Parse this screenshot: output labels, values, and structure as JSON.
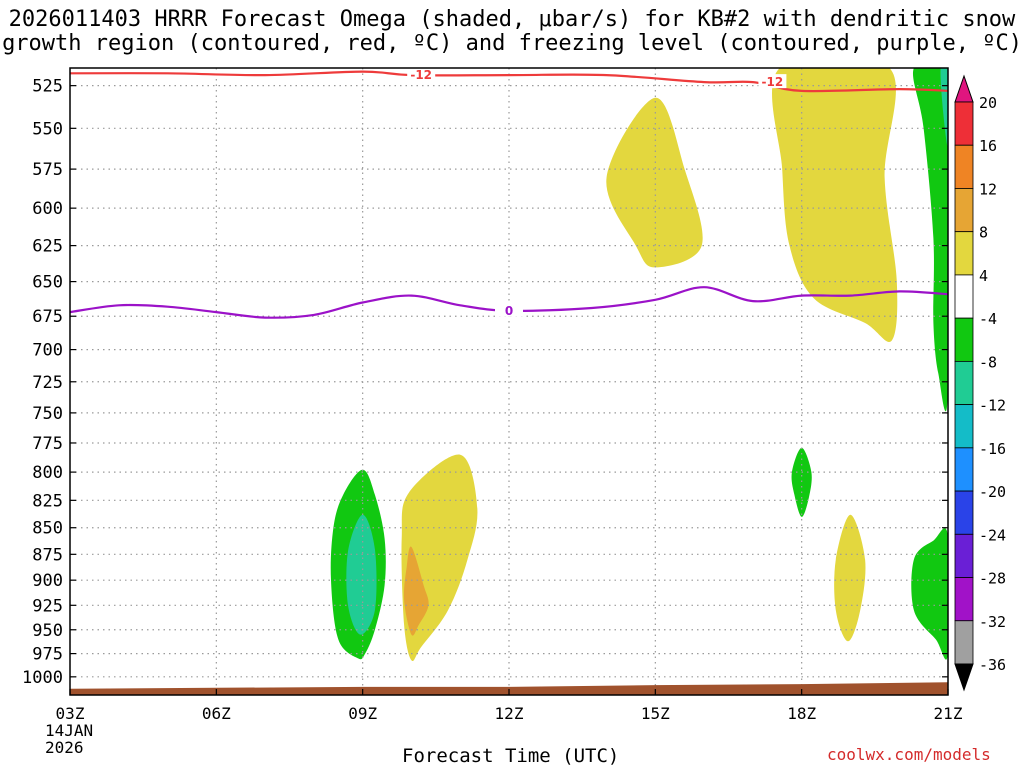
{
  "title": {
    "line1": "2026011403 HRRR Forecast Omega (shaded, μbar/s) for KB#2 with dendritic snow",
    "line2": "growth region (contoured, red, ºC) and freezing level (contoured, purple, ºC)"
  },
  "footer": {
    "xlabel": "Forecast Time (UTC)",
    "date_day": "14JAN",
    "date_year": "2026",
    "credit": "coolwx.com/models"
  },
  "colors": {
    "dgz_line": "#ee3b3b",
    "freezing_line": "#9b12c8",
    "terrain": "#a0522d",
    "grid": "#9a9a9a"
  },
  "chart_data": {
    "type": "contour-time-height",
    "x_ticks": [
      "03Z",
      "06Z",
      "09Z",
      "12Z",
      "15Z",
      "18Z",
      "21Z"
    ],
    "x_hours": [
      3,
      6,
      9,
      12,
      15,
      18,
      21
    ],
    "x_range": [
      3,
      21
    ],
    "y_ticks": [
      525,
      550,
      575,
      600,
      625,
      650,
      675,
      700,
      725,
      750,
      775,
      800,
      825,
      850,
      875,
      900,
      925,
      950,
      975,
      1000
    ],
    "y_range_hpa": [
      515,
      1020
    ],
    "y_scale": "log",
    "colorbar": {
      "ticks": [
        "20",
        "16",
        "12",
        "8",
        "4",
        "-4",
        "-8",
        "-12",
        "-16",
        "-20",
        "-24",
        "-28",
        "-32",
        "-36"
      ],
      "bins": [
        {
          "range": ">20",
          "color": "#e0157f"
        },
        {
          "range": "16 to 20",
          "color": "#ee2f37"
        },
        {
          "range": "12 to 16",
          "color": "#ef8424"
        },
        {
          "range": "8 to 12",
          "color": "#e6a534"
        },
        {
          "range": "4 to 8",
          "color": "#e3d73e"
        },
        {
          "range": "-4 to 4",
          "color": "#ffffff"
        },
        {
          "range": "-8 to -4",
          "color": "#11c811"
        },
        {
          "range": "-12 to -8",
          "color": "#20cc94"
        },
        {
          "range": "-16 to -12",
          "color": "#14bcc8"
        },
        {
          "range": "-20 to -16",
          "color": "#1e90ff"
        },
        {
          "range": "-24 to -20",
          "color": "#2a43e8"
        },
        {
          "range": "-28 to -24",
          "color": "#6a1fd6"
        },
        {
          "range": "-32 to -28",
          "color": "#a112c8"
        },
        {
          "range": "-36 to -32",
          "color": "#a0a0a0"
        },
        {
          "range": "<-36",
          "color": "#000000"
        }
      ]
    },
    "contours": [
      {
        "name": "dendritic growth region",
        "label": "-12",
        "units": "ºC",
        "color": "#ee3b3b",
        "points": [
          [
            3,
            518
          ],
          [
            5,
            518
          ],
          [
            7,
            519
          ],
          [
            9,
            517
          ],
          [
            10,
            519
          ],
          [
            12,
            519
          ],
          [
            14,
            519
          ],
          [
            16,
            523
          ],
          [
            17,
            523
          ],
          [
            18,
            528
          ],
          [
            20,
            527
          ],
          [
            21,
            528
          ]
        ],
        "label_positions": [
          [
            10.2,
            519
          ],
          [
            17.4,
            523
          ]
        ]
      },
      {
        "name": "freezing level",
        "label": "0",
        "units": "ºC",
        "color": "#9b12c8",
        "points": [
          [
            3,
            672
          ],
          [
            4,
            667
          ],
          [
            5,
            668
          ],
          [
            6,
            672
          ],
          [
            7,
            676
          ],
          [
            8,
            674
          ],
          [
            9,
            665
          ],
          [
            10,
            660
          ],
          [
            11,
            667
          ],
          [
            12,
            671
          ],
          [
            13.7,
            669
          ],
          [
            15,
            663
          ],
          [
            16,
            654
          ],
          [
            17,
            664
          ],
          [
            18,
            660
          ],
          [
            19,
            660
          ],
          [
            20,
            657
          ],
          [
            21,
            659
          ]
        ],
        "label_positions": [
          [
            12,
            671
          ]
        ]
      }
    ],
    "shaded_regions": [
      {
        "value_bin": "-8 to -4",
        "points": [
          [
            9,
            798
          ],
          [
            9.25,
            820
          ],
          [
            9.45,
            860
          ],
          [
            9.45,
            905
          ],
          [
            9.25,
            950
          ],
          [
            9.05,
            975
          ],
          [
            8.9,
            980
          ],
          [
            8.5,
            960
          ],
          [
            8.35,
            900
          ],
          [
            8.4,
            850
          ],
          [
            8.6,
            820
          ]
        ]
      },
      {
        "value_bin": "-12 to -8",
        "points": [
          [
            9.0,
            838
          ],
          [
            9.25,
            870
          ],
          [
            9.25,
            930
          ],
          [
            8.95,
            955
          ],
          [
            8.7,
            925
          ],
          [
            8.7,
            872
          ]
        ]
      },
      {
        "value_bin": "4 to 8",
        "points": [
          [
            11.0,
            785
          ],
          [
            11.35,
            832
          ],
          [
            11.15,
            880
          ],
          [
            10.75,
            930
          ],
          [
            10.2,
            968
          ],
          [
            10.0,
            982
          ],
          [
            9.85,
            945
          ],
          [
            9.8,
            860
          ],
          [
            9.95,
            818
          ]
        ]
      },
      {
        "value_bin": "8 to 12",
        "points": [
          [
            10.0,
            868
          ],
          [
            10.25,
            905
          ],
          [
            10.35,
            925
          ],
          [
            10.15,
            945
          ],
          [
            10.0,
            955
          ],
          [
            9.85,
            920
          ],
          [
            9.9,
            888
          ]
        ]
      },
      {
        "value_bin": "4 to 8",
        "points": [
          [
            15.0,
            532
          ],
          [
            15.6,
            575
          ],
          [
            15.95,
            625
          ],
          [
            15.0,
            640
          ],
          [
            14.6,
            625
          ],
          [
            14.0,
            580
          ]
        ]
      },
      {
        "value_bin": "4 to 8",
        "points": [
          [
            17.55,
            515
          ],
          [
            19.8,
            515
          ],
          [
            19.7,
            580
          ],
          [
            19.95,
            650
          ],
          [
            19.85,
            693
          ],
          [
            19.3,
            680
          ],
          [
            18.25,
            662
          ],
          [
            17.75,
            625
          ],
          [
            17.6,
            575
          ]
        ]
      },
      {
        "value_bin": "-8 to -4",
        "points": [
          [
            18.0,
            779
          ],
          [
            18.2,
            800
          ],
          [
            18.15,
            822
          ],
          [
            18.0,
            840
          ],
          [
            17.85,
            820
          ],
          [
            17.8,
            800
          ]
        ]
      },
      {
        "value_bin": "4 to 8",
        "points": [
          [
            19.0,
            838
          ],
          [
            19.3,
            880
          ],
          [
            19.2,
            930
          ],
          [
            18.95,
            962
          ],
          [
            18.7,
            930
          ],
          [
            18.7,
            880
          ]
        ]
      },
      {
        "value_bin": "-8 to -4",
        "points": [
          [
            20.3,
            515
          ],
          [
            21.0,
            515
          ],
          [
            21.0,
            732
          ],
          [
            20.8,
            718
          ],
          [
            20.7,
            680
          ],
          [
            20.7,
            620
          ],
          [
            20.5,
            550
          ]
        ]
      },
      {
        "value_bin": "-12 to -8",
        "points": [
          [
            20.85,
            515
          ],
          [
            21.0,
            515
          ],
          [
            21.0,
            560
          ],
          [
            20.9,
            540
          ]
        ]
      },
      {
        "value_bin": "-8 to -4",
        "points": [
          [
            21.0,
            858
          ],
          [
            21.0,
            975
          ],
          [
            20.75,
            960
          ],
          [
            20.3,
            930
          ],
          [
            20.3,
            880
          ],
          [
            20.7,
            862
          ]
        ]
      }
    ],
    "terrain": {
      "label": "surface",
      "color": "#a0522d",
      "points": [
        [
          3,
          1013
        ],
        [
          6,
          1012
        ],
        [
          9,
          1011
        ],
        [
          12,
          1011
        ],
        [
          15,
          1009
        ],
        [
          18,
          1008
        ],
        [
          21,
          1006
        ]
      ]
    }
  }
}
